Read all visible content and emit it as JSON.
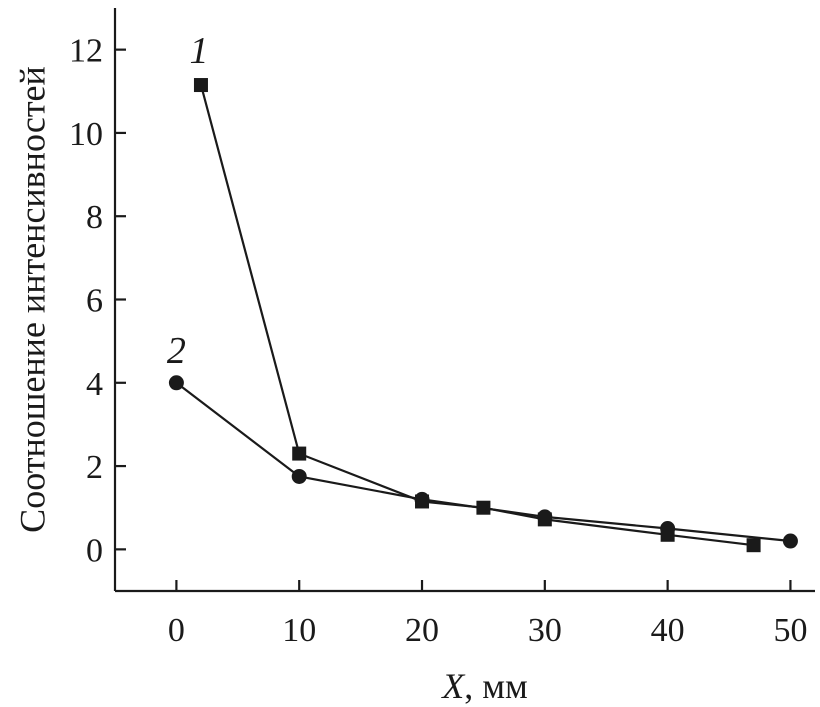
{
  "chart_data": {
    "type": "line",
    "xlabel_var": "X",
    "xlabel_unit": ", мм",
    "ylabel": "Соотношение интенсивностей",
    "xlim": [
      -5,
      52
    ],
    "ylim": [
      -1,
      13
    ],
    "x_ticks": [
      0,
      10,
      20,
      30,
      40,
      50
    ],
    "y_ticks": [
      0,
      2,
      4,
      6,
      8,
      10,
      12
    ],
    "x_tick_labels": [
      "0",
      "10",
      "20",
      "30",
      "40",
      "50"
    ],
    "y_tick_labels": [
      "0",
      "2",
      "4",
      "6",
      "8",
      "10",
      "12"
    ],
    "grid": false,
    "series": [
      {
        "name": "1",
        "marker": "square",
        "x": [
          2,
          10,
          20,
          25,
          30,
          40,
          47
        ],
        "y": [
          11.15,
          2.3,
          1.15,
          1.0,
          0.72,
          0.35,
          0.1
        ]
      },
      {
        "name": "2",
        "marker": "circle",
        "x": [
          0,
          10,
          20,
          30,
          40,
          50
        ],
        "y": [
          4.0,
          1.75,
          1.2,
          0.78,
          0.5,
          0.2
        ]
      }
    ],
    "colors": {
      "line": "#1a1a1a",
      "marker": "#1a1a1a"
    }
  }
}
